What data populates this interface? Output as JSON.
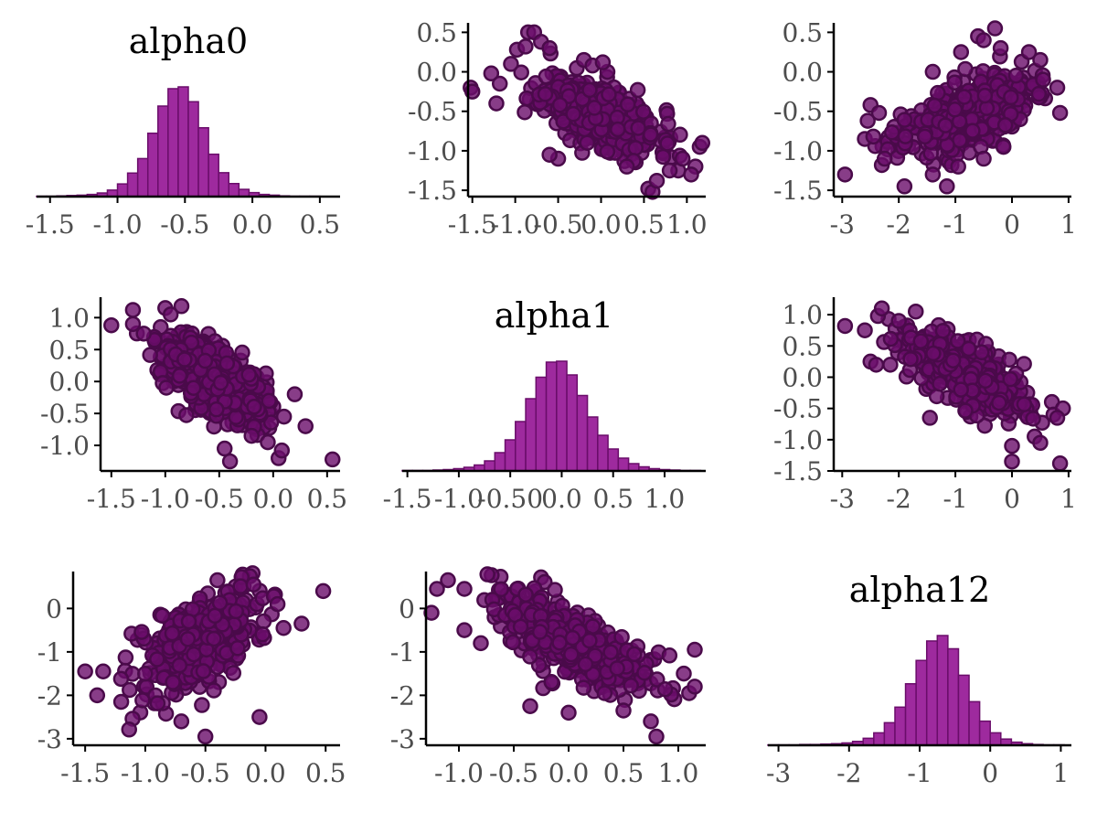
{
  "colors": {
    "hist_fill": "#9e2a9e",
    "hist_stroke": "#6a0d6a",
    "point_fill": "#6a0d6a",
    "point_stroke": "#4a0a4a",
    "axis": "#000000",
    "tick_text": "#4d4d4d"
  },
  "chart_data": {
    "type": "pairs",
    "variables": [
      "alpha0",
      "alpha1",
      "alpha12"
    ],
    "grid": false,
    "panels": [
      {
        "id": "p00",
        "row": 0,
        "col": 0,
        "type": "histogram",
        "title": "alpha0",
        "x_range": [
          -1.6,
          0.65
        ],
        "x_ticks": [
          -1.5,
          -1.0,
          -0.5,
          0.0,
          0.5
        ],
        "x_tick_labels": [
          "-1.5",
          "-1.0",
          "-0.5",
          "0.0",
          "0.5"
        ],
        "bin_start": -1.6,
        "bin_width": 0.075,
        "counts": [
          1,
          1,
          2,
          3,
          4,
          6,
          10,
          18,
          35,
          65,
          105,
          175,
          250,
          298,
          303,
          262,
          190,
          117,
          66,
          36,
          20,
          11,
          6,
          4,
          2,
          1,
          1,
          1,
          0,
          0
        ]
      },
      {
        "id": "p01",
        "row": 0,
        "col": 1,
        "type": "scatter",
        "x_var": "alpha1",
        "y_var": "alpha0",
        "x_range": [
          -1.55,
          1.22
        ],
        "y_range": [
          -1.58,
          0.62
        ],
        "x_ticks": [
          -1.5,
          -1.0,
          -0.5,
          0.0,
          0.5,
          1.0
        ],
        "x_tick_labels": [
          "-1.5",
          "-1.0",
          "-0.5",
          "0.0",
          "0.5",
          "1.0"
        ],
        "y_ticks": [
          0.5,
          0.0,
          -0.5,
          -1.0,
          -1.5
        ],
        "y_tick_labels": [
          "0.5",
          "0.0",
          "-0.5",
          "-1.0",
          "-1.5"
        ],
        "points": [
          [
            -1.52,
            -0.2
          ],
          [
            -1.5,
            -0.25
          ],
          [
            -1.28,
            -0.02
          ],
          [
            -1.22,
            -0.4
          ],
          [
            -1.18,
            -0.15
          ],
          [
            -1.05,
            0.1
          ],
          [
            -0.98,
            0.28
          ],
          [
            -0.88,
            0.32
          ],
          [
            -0.85,
            0.5
          ],
          [
            -0.78,
            0.5
          ],
          [
            -0.7,
            0.38
          ],
          [
            -0.6,
            0.3
          ],
          [
            -0.2,
            0.15
          ],
          [
            -0.1,
            0.08
          ],
          [
            0.02,
            0.12
          ],
          [
            0.55,
            -1.48
          ],
          [
            0.6,
            -1.52
          ],
          [
            0.65,
            -1.38
          ],
          [
            0.9,
            -1.25
          ],
          [
            1.1,
            -1.2
          ],
          [
            1.15,
            -0.95
          ],
          [
            1.18,
            -0.9
          ],
          [
            1.05,
            -1.3
          ],
          [
            0.3,
            -1.2
          ],
          [
            -0.5,
            -1.1
          ],
          [
            -0.6,
            -1.05
          ],
          [
            0.8,
            -1.25
          ],
          [
            0.95,
            -1.1
          ]
        ],
        "cloud": {
          "mean_x": 0.0,
          "mean_y": -0.55,
          "sd_x": 0.33,
          "sd_y": 0.23,
          "rho": -0.58,
          "n": 520,
          "seed": 11
        }
      },
      {
        "id": "p02",
        "row": 0,
        "col": 2,
        "type": "scatter",
        "x_var": "alpha12",
        "y_var": "alpha0",
        "x_range": [
          -3.15,
          1.05
        ],
        "y_range": [
          -1.58,
          0.62
        ],
        "x_ticks": [
          -3,
          -2,
          -1,
          0,
          1
        ],
        "x_tick_labels": [
          "-3",
          "-2",
          "-1",
          "0",
          "1"
        ],
        "y_ticks": [
          0.5,
          0.0,
          -0.5,
          -1.0,
          -1.5
        ],
        "y_tick_labels": [
          "0.5",
          "0.0",
          "-0.5",
          "-1.0",
          "-1.5"
        ],
        "points": [
          [
            -2.95,
            -1.3
          ],
          [
            -2.6,
            -0.85
          ],
          [
            -2.55,
            -0.62
          ],
          [
            -2.5,
            -0.42
          ],
          [
            -2.35,
            -0.52
          ],
          [
            -2.45,
            -0.82
          ],
          [
            -2.3,
            -1.18
          ],
          [
            -2.25,
            -1.1
          ],
          [
            -1.9,
            -1.45
          ],
          [
            -1.15,
            -1.45
          ],
          [
            -1.4,
            -1.3
          ],
          [
            -0.95,
            -1.2
          ],
          [
            -0.5,
            -1.1
          ],
          [
            -0.15,
            -0.95
          ],
          [
            -0.3,
            0.55
          ],
          [
            -0.6,
            0.45
          ],
          [
            -0.5,
            0.4
          ],
          [
            -0.2,
            0.3
          ],
          [
            0.3,
            0.25
          ],
          [
            0.5,
            0.15
          ],
          [
            0.8,
            -0.2
          ],
          [
            0.85,
            -0.52
          ],
          [
            0.55,
            -0.1
          ],
          [
            -0.9,
            0.25
          ],
          [
            -1.4,
            0.0
          ]
        ],
        "cloud": {
          "mean_x": -0.8,
          "mean_y": -0.55,
          "sd_x": 0.55,
          "sd_y": 0.23,
          "rho": 0.55,
          "n": 520,
          "seed": 23
        }
      },
      {
        "id": "p10",
        "row": 1,
        "col": 0,
        "type": "scatter",
        "x_var": "alpha0",
        "y_var": "alpha1",
        "x_range": [
          -1.6,
          0.62
        ],
        "y_range": [
          -1.4,
          1.32
        ],
        "x_ticks": [
          -1.5,
          -1.0,
          -0.5,
          0.0,
          0.5
        ],
        "x_tick_labels": [
          "-1.5",
          "-1.0",
          "-0.5",
          "0.0",
          "0.5"
        ],
        "y_ticks": [
          1.0,
          0.5,
          0.0,
          -0.5,
          -1.0
        ],
        "y_tick_labels": [
          "1.0",
          "0.5",
          "0.0",
          "-0.5",
          "-1.0"
        ],
        "points": [
          [
            -1.5,
            0.88
          ],
          [
            -1.3,
            1.12
          ],
          [
            -1.3,
            0.9
          ],
          [
            -1.0,
            1.15
          ],
          [
            -0.85,
            1.18
          ],
          [
            -0.95,
            1.05
          ],
          [
            -1.1,
            0.65
          ],
          [
            0.2,
            -0.2
          ],
          [
            0.3,
            -0.7
          ],
          [
            0.55,
            -1.22
          ],
          [
            0.05,
            -1.2
          ],
          [
            0.08,
            -1.08
          ],
          [
            -0.45,
            -1.05
          ],
          [
            -0.4,
            -1.25
          ],
          [
            -0.05,
            -0.95
          ],
          [
            0.1,
            -0.55
          ],
          [
            -0.2,
            -0.85
          ],
          [
            -1.2,
            0.75
          ]
        ],
        "cloud": {
          "mean_x": -0.55,
          "mean_y": 0.05,
          "sd_x": 0.23,
          "sd_y": 0.33,
          "rho": -0.58,
          "n": 520,
          "seed": 37
        }
      },
      {
        "id": "p11",
        "row": 1,
        "col": 1,
        "type": "histogram",
        "title": "alpha1",
        "x_range": [
          -1.55,
          1.4
        ],
        "x_ticks": [
          -1.5,
          -1.0,
          -0.5,
          0.0,
          0.5,
          1.0
        ],
        "x_tick_labels": [
          "-1.5",
          "-1.0",
          "-0.50",
          "0.0",
          "0.5",
          "1.0"
        ],
        "bin_start": -1.55,
        "bin_width": 0.1,
        "counts": [
          1,
          1,
          1,
          2,
          3,
          5,
          8,
          13,
          22,
          40,
          68,
          108,
          158,
          205,
          238,
          240,
          210,
          165,
          118,
          78,
          48,
          28,
          16,
          9,
          5,
          3,
          2,
          1,
          1,
          0
        ]
      },
      {
        "id": "p12",
        "row": 1,
        "col": 2,
        "type": "scatter",
        "x_var": "alpha12",
        "y_var": "alpha1",
        "x_range": [
          -3.15,
          1.05
        ],
        "y_range": [
          -1.5,
          1.28
        ],
        "x_ticks": [
          -3,
          -2,
          -1,
          0,
          1
        ],
        "x_tick_labels": [
          "-3",
          "-2",
          "-1",
          "0",
          "1"
        ],
        "y_ticks": [
          1.0,
          0.5,
          0.0,
          -0.5,
          -1.0,
          -1.5
        ],
        "y_tick_labels": [
          "1.0",
          "0.5",
          "0.0",
          "-0.5",
          "-1.0",
          "-1.5"
        ],
        "points": [
          [
            -2.95,
            0.82
          ],
          [
            -2.6,
            0.75
          ],
          [
            -2.3,
            1.1
          ],
          [
            -2.5,
            0.25
          ],
          [
            -2.4,
            0.2
          ],
          [
            -2.15,
            0.2
          ],
          [
            -1.45,
            -0.65
          ],
          [
            0.0,
            -1.1
          ],
          [
            0.0,
            -1.35
          ],
          [
            0.85,
            -1.38
          ],
          [
            0.9,
            -0.5
          ],
          [
            0.8,
            -0.65
          ],
          [
            0.4,
            -0.95
          ],
          [
            0.5,
            -1.05
          ],
          [
            -2.0,
            0.9
          ],
          [
            -1.7,
            1.05
          ]
        ],
        "cloud": {
          "mean_x": -0.8,
          "mean_y": 0.05,
          "sd_x": 0.55,
          "sd_y": 0.33,
          "rho": -0.72,
          "n": 520,
          "seed": 53
        }
      },
      {
        "id": "p20",
        "row": 2,
        "col": 0,
        "type": "scatter",
        "x_var": "alpha0",
        "y_var": "alpha12",
        "x_range": [
          -1.6,
          0.62
        ],
        "y_range": [
          -3.15,
          0.85
        ],
        "x_ticks": [
          -1.5,
          -1.0,
          -0.5,
          0.0,
          0.5
        ],
        "x_tick_labels": [
          "-1.5",
          "-1.0",
          "-0.5",
          "0.0",
          "0.5"
        ],
        "y_ticks": [
          0,
          -1,
          -2,
          -3
        ],
        "y_tick_labels": [
          "0",
          "-1",
          "-2",
          "-3"
        ],
        "points": [
          [
            -1.5,
            -1.45
          ],
          [
            -1.35,
            -1.45
          ],
          [
            -1.4,
            -2.0
          ],
          [
            -1.2,
            -2.15
          ],
          [
            -0.7,
            -2.6
          ],
          [
            -0.5,
            -2.95
          ],
          [
            -0.05,
            -2.5
          ],
          [
            0.48,
            0.4
          ],
          [
            0.3,
            -0.35
          ],
          [
            0.15,
            -0.45
          ],
          [
            -0.4,
            0.65
          ],
          [
            -0.1,
            0.55
          ],
          [
            0.1,
            0.1
          ]
        ],
        "cloud": {
          "mean_x": -0.55,
          "mean_y": -0.8,
          "sd_x": 0.23,
          "sd_y": 0.55,
          "rho": 0.55,
          "n": 520,
          "seed": 71
        }
      },
      {
        "id": "p21",
        "row": 2,
        "col": 1,
        "type": "scatter",
        "x_var": "alpha1",
        "y_var": "alpha12",
        "x_range": [
          -1.3,
          1.25
        ],
        "y_range": [
          -3.15,
          0.85
        ],
        "x_ticks": [
          -1.0,
          -0.5,
          0.0,
          0.5,
          1.0
        ],
        "x_tick_labels": [
          "-1.0",
          "-0.5",
          "0.0",
          "0.5",
          "1.0"
        ],
        "y_ticks": [
          0,
          -1,
          -2,
          -3
        ],
        "y_tick_labels": [
          "0",
          "-1",
          "-2",
          "-3"
        ],
        "points": [
          [
            -1.25,
            -0.1
          ],
          [
            -1.2,
            0.45
          ],
          [
            -1.1,
            0.65
          ],
          [
            -0.95,
            0.45
          ],
          [
            -0.95,
            -0.5
          ],
          [
            -0.8,
            -0.8
          ],
          [
            -0.35,
            -2.25
          ],
          [
            0.0,
            -2.4
          ],
          [
            0.5,
            -2.35
          ],
          [
            0.75,
            -2.6
          ],
          [
            0.8,
            -2.95
          ],
          [
            1.15,
            -0.95
          ],
          [
            1.15,
            -1.8
          ],
          [
            1.05,
            -1.5
          ]
        ],
        "cloud": {
          "mean_x": 0.05,
          "mean_y": -0.8,
          "sd_x": 0.33,
          "sd_y": 0.55,
          "rho": -0.72,
          "n": 520,
          "seed": 89
        }
      },
      {
        "id": "p22",
        "row": 2,
        "col": 2,
        "type": "histogram",
        "title": "alpha12",
        "x_range": [
          -3.15,
          1.15
        ],
        "x_ticks": [
          -3,
          -2,
          -1,
          0,
          1
        ],
        "x_tick_labels": [
          "-3",
          "-2",
          "-1",
          "0",
          "1"
        ],
        "bin_start": -3.15,
        "bin_width": 0.15,
        "counts": [
          1,
          1,
          1,
          2,
          2,
          3,
          4,
          6,
          10,
          18,
          32,
          58,
          98,
          158,
          218,
          268,
          282,
          248,
          180,
          112,
          62,
          32,
          16,
          8,
          4,
          2,
          1,
          1,
          0
        ]
      }
    ]
  }
}
